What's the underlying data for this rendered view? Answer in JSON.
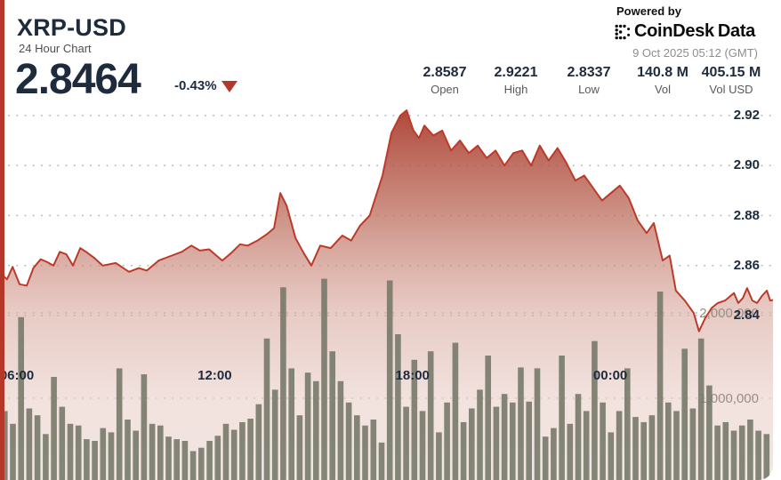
{
  "header": {
    "symbol": "XRP-USD",
    "subtitle": "24 Hour Chart",
    "price": "2.8464",
    "change_pct": "-0.43%",
    "direction": "down",
    "powered_by": "Powered by",
    "brand_primary": "CoinDesk",
    "brand_secondary": "Data",
    "timestamp": "9 Oct 2025 05:12 (GMT)"
  },
  "stats": [
    {
      "value": "2.8587",
      "label": "Open"
    },
    {
      "value": "2.9221",
      "label": "High"
    },
    {
      "value": "2.8337",
      "label": "Low"
    },
    {
      "value": "140.8 M",
      "label": "Vol"
    },
    {
      "value": "405.15 M",
      "label": "Vol USD"
    }
  ],
  "colors": {
    "accent_red": "#b5372a",
    "line_red": "#bd3a29",
    "navy_text": "#1d2b3c",
    "gray_text": "#5a5a5a",
    "timestamp_gray": "#8d8d8d",
    "volume_bar": "#747868",
    "volume_label": "#9a8d86",
    "grid_dot": "#b9b3ae",
    "fill_top": "#a63023",
    "fill_bottom": "#f0e4e0"
  },
  "chart_data": {
    "type": "area",
    "title": "XRP-USD 24 hour price with volume",
    "x_axis": {
      "unit": "hours",
      "tick_labels": [
        "06:00",
        "12:00",
        "18:00",
        "00:00"
      ],
      "tick_hours": [
        6,
        12,
        18,
        24
      ],
      "start_hour": 5.49,
      "end_hour": 29.01,
      "grid": false
    },
    "price_axis": {
      "side": "right",
      "tick_labels": [
        "2.92",
        "2.90",
        "2.88",
        "2.86",
        "2.84"
      ],
      "tick_values": [
        2.92,
        2.9,
        2.88,
        2.86,
        2.84
      ],
      "grid": "dotted"
    },
    "volume_axis": {
      "side": "right",
      "tick_labels": [
        "2,000,000",
        "1,000,000"
      ],
      "tick_values": [
        2000000,
        1000000
      ],
      "grid": "dotted"
    },
    "price_series": {
      "name": "XRP-USD price",
      "points": [
        [
          5.49,
          2.857
        ],
        [
          5.7,
          2.8545
        ],
        [
          5.87,
          2.8595
        ],
        [
          6.08,
          2.8525
        ],
        [
          6.3,
          2.852
        ],
        [
          6.5,
          2.859
        ],
        [
          6.72,
          2.8625
        ],
        [
          6.9,
          2.8615
        ],
        [
          7.11,
          2.86
        ],
        [
          7.3,
          2.8655
        ],
        [
          7.5,
          2.8645
        ],
        [
          7.7,
          2.86
        ],
        [
          7.92,
          2.867
        ],
        [
          8.1,
          2.8655
        ],
        [
          8.35,
          2.863
        ],
        [
          8.6,
          2.86
        ],
        [
          9.0,
          2.861
        ],
        [
          9.4,
          2.8575
        ],
        [
          9.7,
          2.859
        ],
        [
          9.94,
          2.858
        ],
        [
          10.3,
          2.862
        ],
        [
          10.7,
          2.864
        ],
        [
          11.0,
          2.8655
        ],
        [
          11.29,
          2.868
        ],
        [
          11.55,
          2.866
        ],
        [
          11.83,
          2.8665
        ],
        [
          12.05,
          2.864
        ],
        [
          12.23,
          2.862
        ],
        [
          12.5,
          2.865
        ],
        [
          12.77,
          2.8685
        ],
        [
          13.0,
          2.868
        ],
        [
          13.3,
          2.87
        ],
        [
          13.58,
          2.8725
        ],
        [
          13.8,
          2.875
        ],
        [
          13.99,
          2.889
        ],
        [
          14.18,
          2.884
        ],
        [
          14.45,
          2.871
        ],
        [
          14.7,
          2.865
        ],
        [
          14.93,
          2.86
        ],
        [
          15.2,
          2.868
        ],
        [
          15.52,
          2.867
        ],
        [
          15.87,
          2.872
        ],
        [
          16.14,
          2.87
        ],
        [
          16.41,
          2.876
        ],
        [
          16.7,
          2.88
        ],
        [
          17.09,
          2.896
        ],
        [
          17.36,
          2.913
        ],
        [
          17.63,
          2.92
        ],
        [
          17.82,
          2.9221
        ],
        [
          18.03,
          2.914
        ],
        [
          18.2,
          2.911
        ],
        [
          18.36,
          2.916
        ],
        [
          18.63,
          2.912
        ],
        [
          18.9,
          2.914
        ],
        [
          19.17,
          2.906
        ],
        [
          19.44,
          2.91
        ],
        [
          19.71,
          2.905
        ],
        [
          19.98,
          2.908
        ],
        [
          20.25,
          2.903
        ],
        [
          20.52,
          2.906
        ],
        [
          20.79,
          2.9
        ],
        [
          21.06,
          2.905
        ],
        [
          21.33,
          2.906
        ],
        [
          21.6,
          2.9
        ],
        [
          21.86,
          2.908
        ],
        [
          22.13,
          2.902
        ],
        [
          22.4,
          2.907
        ],
        [
          22.67,
          2.901
        ],
        [
          22.94,
          2.894
        ],
        [
          23.21,
          2.896
        ],
        [
          23.48,
          2.891
        ],
        [
          23.75,
          2.886
        ],
        [
          24.02,
          2.889
        ],
        [
          24.29,
          2.892
        ],
        [
          24.56,
          2.887
        ],
        [
          24.83,
          2.878
        ],
        [
          25.1,
          2.873
        ],
        [
          25.32,
          2.877
        ],
        [
          25.59,
          2.862
        ],
        [
          25.8,
          2.864
        ],
        [
          25.99,
          2.85
        ],
        [
          26.26,
          2.846
        ],
        [
          26.53,
          2.841
        ],
        [
          26.69,
          2.8337
        ],
        [
          26.88,
          2.839
        ],
        [
          27.07,
          2.843
        ],
        [
          27.26,
          2.845
        ],
        [
          27.48,
          2.846
        ],
        [
          27.75,
          2.849
        ],
        [
          27.88,
          2.845
        ],
        [
          28.02,
          2.847
        ],
        [
          28.15,
          2.851
        ],
        [
          28.31,
          2.846
        ],
        [
          28.45,
          2.845
        ],
        [
          28.61,
          2.848
        ],
        [
          28.75,
          2.85
        ],
        [
          28.85,
          2.846
        ],
        [
          29.01,
          2.8464
        ]
      ]
    },
    "volume_series": {
      "name": "Volume",
      "bar_interval_min": 15,
      "unit": "millions",
      "values": [
        0.85,
        0.7,
        1.95,
        0.88,
        0.8,
        0.58,
        1.25,
        0.9,
        0.7,
        0.68,
        0.52,
        0.5,
        0.65,
        0.6,
        1.35,
        0.75,
        0.62,
        1.28,
        0.7,
        0.68,
        0.55,
        0.52,
        0.5,
        0.38,
        0.42,
        0.5,
        0.56,
        0.7,
        0.63,
        0.72,
        0.76,
        0.93,
        1.7,
        1.1,
        2.3,
        1.35,
        0.8,
        1.3,
        1.2,
        2.4,
        1.55,
        1.2,
        0.95,
        0.8,
        0.68,
        0.75,
        0.48,
        2.38,
        1.75,
        0.9,
        1.45,
        0.85,
        1.55,
        0.6,
        0.95,
        1.65,
        0.72,
        0.88,
        1.1,
        1.5,
        0.9,
        1.05,
        0.95,
        1.36,
        0.96,
        1.35,
        0.55,
        0.65,
        1.5,
        0.7,
        1.05,
        0.85,
        1.67,
        0.95,
        0.6,
        0.85,
        1.35,
        0.78,
        0.72,
        0.8,
        2.25,
        0.95,
        0.85,
        1.58,
        0.88,
        1.7,
        1.15,
        0.68,
        0.72,
        0.62,
        0.68,
        0.75,
        0.62,
        0.58
      ]
    }
  }
}
